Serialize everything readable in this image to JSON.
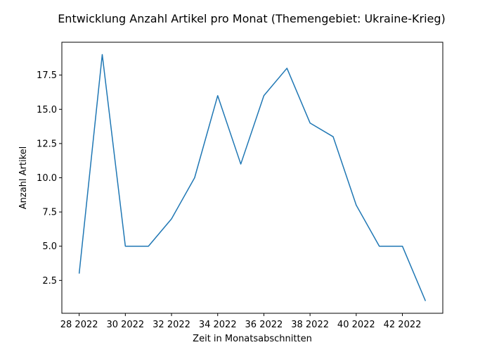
{
  "chart_data": {
    "type": "line",
    "title": "Entwicklung Anzahl Artikel pro Monat (Themengebiet: Ukraine-Krieg)",
    "xlabel": "Zeit in Monatsabschnitten",
    "ylabel": "Anzahl Artikel",
    "x": [
      28,
      29,
      30,
      31,
      32,
      33,
      34,
      35,
      36,
      37,
      38,
      39,
      40,
      41,
      42,
      43
    ],
    "values": [
      3,
      19,
      5,
      5,
      7,
      10,
      16,
      11,
      16,
      18,
      14,
      13,
      8,
      5,
      5,
      1
    ],
    "x_ticks": [
      {
        "value": 28,
        "label": "28 2022"
      },
      {
        "value": 30,
        "label": "30 2022"
      },
      {
        "value": 32,
        "label": "32 2022"
      },
      {
        "value": 34,
        "label": "34 2022"
      },
      {
        "value": 36,
        "label": "36 2022"
      },
      {
        "value": 38,
        "label": "38 2022"
      },
      {
        "value": 40,
        "label": "40 2022"
      },
      {
        "value": 42,
        "label": "42 2022"
      }
    ],
    "y_ticks": [
      {
        "value": 2.5,
        "label": "2.5"
      },
      {
        "value": 5.0,
        "label": "5.0"
      },
      {
        "value": 7.5,
        "label": "7.5"
      },
      {
        "value": 10.0,
        "label": "10.0"
      },
      {
        "value": 12.5,
        "label": "12.5"
      },
      {
        "value": 15.0,
        "label": "15.0"
      },
      {
        "value": 17.5,
        "label": "17.5"
      }
    ],
    "xlim": [
      27.25,
      43.75
    ],
    "ylim": [
      0.1,
      19.9
    ],
    "grid": false,
    "line_color": "#1f77b4"
  }
}
